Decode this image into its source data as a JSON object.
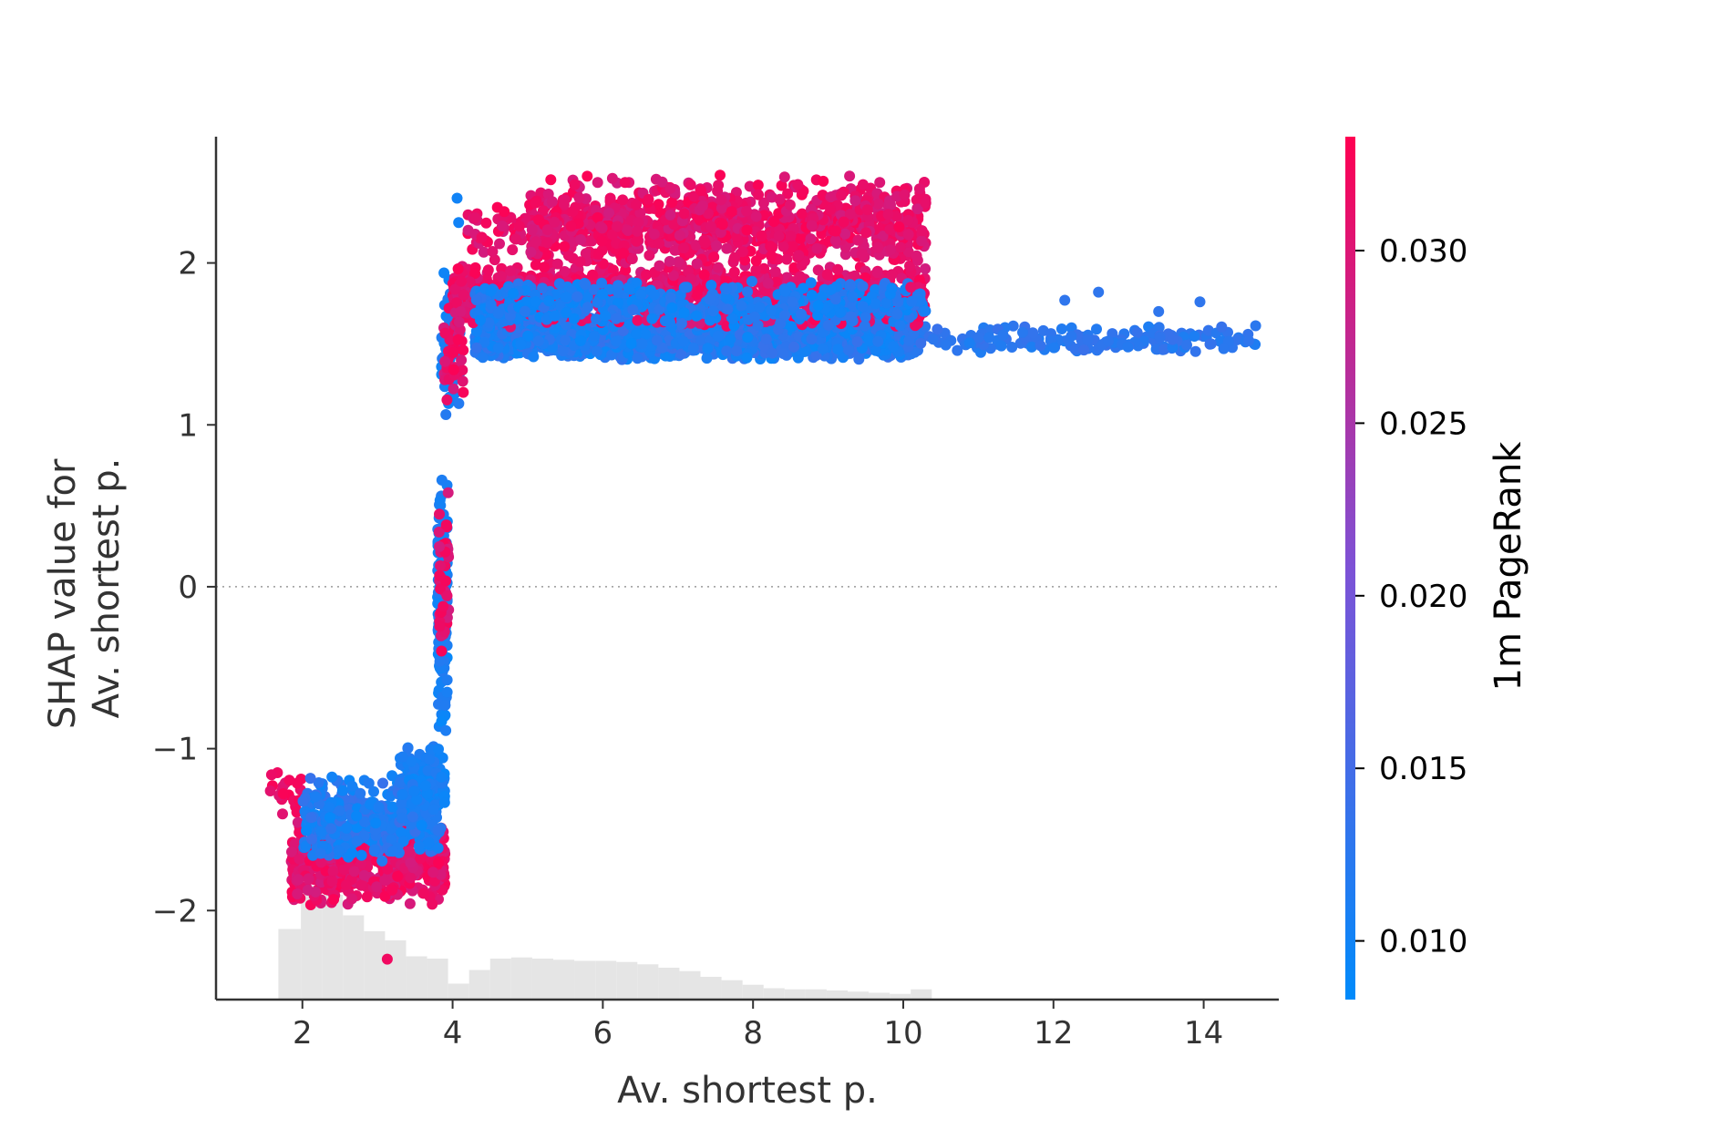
{
  "chart_data": {
    "type": "scatter",
    "title": "",
    "xlabel": "Av. shortest p.",
    "ylabel_lines": [
      "SHAP value for",
      "Av. shortest p."
    ],
    "xlim": [
      0.85,
      15
    ],
    "ylim": [
      -2.55,
      2.78
    ],
    "x_ticks": [
      2,
      4,
      6,
      8,
      10,
      12,
      14
    ],
    "y_ticks": [
      2,
      1,
      0,
      -1,
      -2
    ],
    "y_tick_labels": [
      "2",
      "1",
      "0",
      "−1",
      "−2"
    ],
    "zero_line": true,
    "grid": false,
    "colorbar": {
      "label": "1m PageRank",
      "range": [
        0.0083,
        0.0333
      ],
      "ticks": [
        0.01,
        0.015,
        0.02,
        0.025,
        0.03
      ],
      "tick_labels": [
        "0.010",
        "0.015",
        "0.020",
        "0.025",
        "0.030"
      ],
      "low_color": "#008bfb",
      "mid_color": "#7d52d6",
      "high_color": "#ff0052"
    },
    "histogram": {
      "color": "#e5e5e5",
      "bins": [
        {
          "x0": 1.68,
          "x1": 1.98,
          "h": 0.62
        },
        {
          "x0": 1.98,
          "x1": 2.26,
          "h": 1.0
        },
        {
          "x0": 2.26,
          "x1": 2.54,
          "h": 0.92
        },
        {
          "x0": 2.54,
          "x1": 2.82,
          "h": 0.74
        },
        {
          "x0": 2.82,
          "x1": 3.1,
          "h": 0.6
        },
        {
          "x0": 3.1,
          "x1": 3.38,
          "h": 0.52
        },
        {
          "x0": 3.38,
          "x1": 3.66,
          "h": 0.38
        },
        {
          "x0": 3.66,
          "x1": 3.94,
          "h": 0.36
        },
        {
          "x0": 3.94,
          "x1": 4.22,
          "h": 0.14
        },
        {
          "x0": 4.22,
          "x1": 4.5,
          "h": 0.26
        },
        {
          "x0": 4.5,
          "x1": 4.78,
          "h": 0.36
        },
        {
          "x0": 4.78,
          "x1": 5.06,
          "h": 0.37
        },
        {
          "x0": 5.06,
          "x1": 5.34,
          "h": 0.36
        },
        {
          "x0": 5.34,
          "x1": 5.62,
          "h": 0.35
        },
        {
          "x0": 5.62,
          "x1": 5.9,
          "h": 0.34
        },
        {
          "x0": 5.9,
          "x1": 6.18,
          "h": 0.34
        },
        {
          "x0": 6.18,
          "x1": 6.46,
          "h": 0.33
        },
        {
          "x0": 6.46,
          "x1": 6.74,
          "h": 0.31
        },
        {
          "x0": 6.74,
          "x1": 7.02,
          "h": 0.28
        },
        {
          "x0": 7.02,
          "x1": 7.3,
          "h": 0.25
        },
        {
          "x0": 7.3,
          "x1": 7.58,
          "h": 0.2
        },
        {
          "x0": 7.58,
          "x1": 7.86,
          "h": 0.17
        },
        {
          "x0": 7.86,
          "x1": 8.14,
          "h": 0.13
        },
        {
          "x0": 8.14,
          "x1": 8.42,
          "h": 0.1
        },
        {
          "x0": 8.42,
          "x1": 8.7,
          "h": 0.09
        },
        {
          "x0": 8.7,
          "x1": 8.98,
          "h": 0.09
        },
        {
          "x0": 8.98,
          "x1": 9.26,
          "h": 0.08
        },
        {
          "x0": 9.26,
          "x1": 9.54,
          "h": 0.07
        },
        {
          "x0": 9.54,
          "x1": 9.82,
          "h": 0.06
        },
        {
          "x0": 9.82,
          "x1": 10.1,
          "h": 0.05
        },
        {
          "x0": 10.1,
          "x1": 10.38,
          "h": 0.09
        }
      ]
    },
    "clusters": [
      {
        "x": [
          1.55,
          2.0
        ],
        "y": [
          -1.45,
          -1.08
        ],
        "c": [
          0.03,
          0.033
        ],
        "n": 20
      },
      {
        "x": [
          1.85,
          3.9
        ],
        "y": [
          -1.98,
          -1.45
        ],
        "c": [
          0.029,
          0.033
        ],
        "n": 500
      },
      {
        "x": [
          2.0,
          3.85
        ],
        "y": [
          -1.7,
          -1.15
        ],
        "c": [
          0.009,
          0.014
        ],
        "n": 420
      },
      {
        "x": [
          3.3,
          3.9
        ],
        "y": [
          -1.45,
          -0.95
        ],
        "c": [
          0.009,
          0.012
        ],
        "n": 120
      },
      {
        "x": [
          3.8,
          3.93
        ],
        "y": [
          -0.95,
          0.72
        ],
        "c": [
          0.009,
          0.012
        ],
        "n": 150
      },
      {
        "x": [
          3.82,
          3.95
        ],
        "y": [
          -0.5,
          0.7
        ],
        "c": [
          0.029,
          0.033
        ],
        "n": 40
      },
      {
        "x": [
          3.85,
          4.1
        ],
        "y": [
          1.0,
          2.0
        ],
        "c": [
          0.009,
          0.012
        ],
        "n": 70
      },
      {
        "x": [
          3.88,
          4.15
        ],
        "y": [
          1.0,
          1.75
        ],
        "c": [
          0.029,
          0.033
        ],
        "n": 40
      },
      {
        "x": [
          4.3,
          10.2
        ],
        "y": [
          1.4,
          1.7
        ],
        "c": [
          0.009,
          0.014
        ],
        "n": 2200
      },
      {
        "x": [
          10.0,
          14.7
        ],
        "y": [
          1.43,
          1.62
        ],
        "c": [
          0.011,
          0.014
        ],
        "n": 180
      },
      {
        "x": [
          4.0,
          10.3
        ],
        "y": [
          1.6,
          2.0
        ],
        "c": [
          0.029,
          0.033
        ],
        "n": 1100
      },
      {
        "x": [
          4.3,
          10.3
        ],
        "y": [
          1.6,
          1.9
        ],
        "c": [
          0.009,
          0.013
        ],
        "n": 500
      },
      {
        "x": [
          5.0,
          10.3
        ],
        "y": [
          1.95,
          2.55
        ],
        "c": [
          0.029,
          0.033
        ],
        "n": 900
      },
      {
        "x": [
          4.2,
          6.5
        ],
        "y": [
          2.0,
          2.38
        ],
        "c": [
          0.029,
          0.033
        ],
        "n": 120
      }
    ],
    "points": [
      {
        "x": 3.13,
        "y": -2.3,
        "c": 0.032
      },
      {
        "x": 4.06,
        "y": 2.4,
        "c": 0.01
      },
      {
        "x": 4.08,
        "y": 2.25,
        "c": 0.01
      },
      {
        "x": 12.6,
        "y": 1.82,
        "c": 0.013
      },
      {
        "x": 12.15,
        "y": 1.77,
        "c": 0.013
      },
      {
        "x": 13.4,
        "y": 1.7,
        "c": 0.013
      },
      {
        "x": 13.95,
        "y": 1.76,
        "c": 0.013
      },
      {
        "x": 14.6,
        "y": 1.52,
        "c": 0.013
      },
      {
        "x": 10.3,
        "y": 2.37,
        "c": 0.031
      },
      {
        "x": 10.25,
        "y": 2.2,
        "c": 0.031
      },
      {
        "x": 10.1,
        "y": 1.85,
        "c": 0.031
      },
      {
        "x": 9.8,
        "y": 2.3,
        "c": 0.031
      }
    ]
  }
}
